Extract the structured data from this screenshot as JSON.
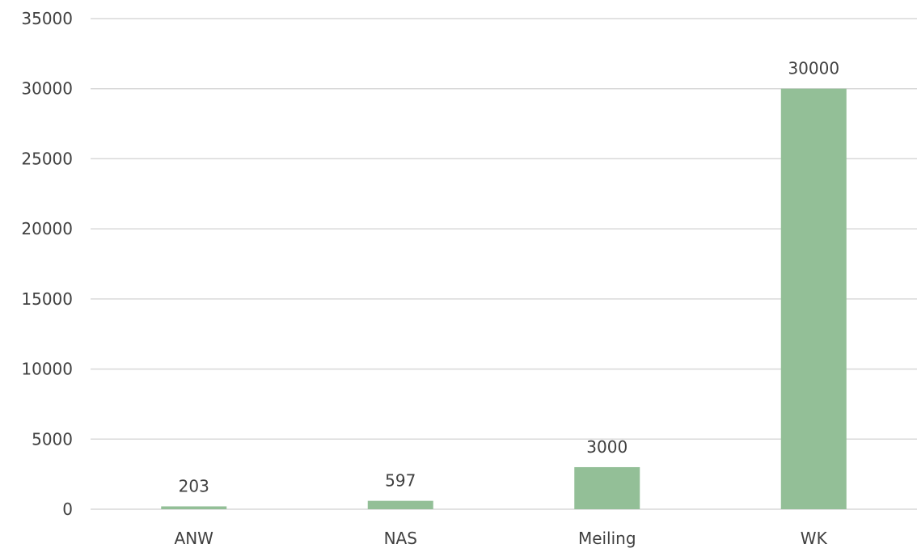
{
  "chart_data": {
    "type": "bar",
    "categories": [
      "ANW",
      "NAS",
      "Meiling",
      "WK"
    ],
    "values": [
      203,
      597,
      3000,
      30000
    ],
    "data_labels": [
      "203",
      "597",
      "3000",
      "30000"
    ],
    "yticks": [
      0,
      5000,
      10000,
      15000,
      20000,
      25000,
      30000,
      35000
    ],
    "ylim": [
      0,
      35000
    ],
    "grid": true,
    "legend": "none",
    "bar_color": "#93bf97"
  }
}
